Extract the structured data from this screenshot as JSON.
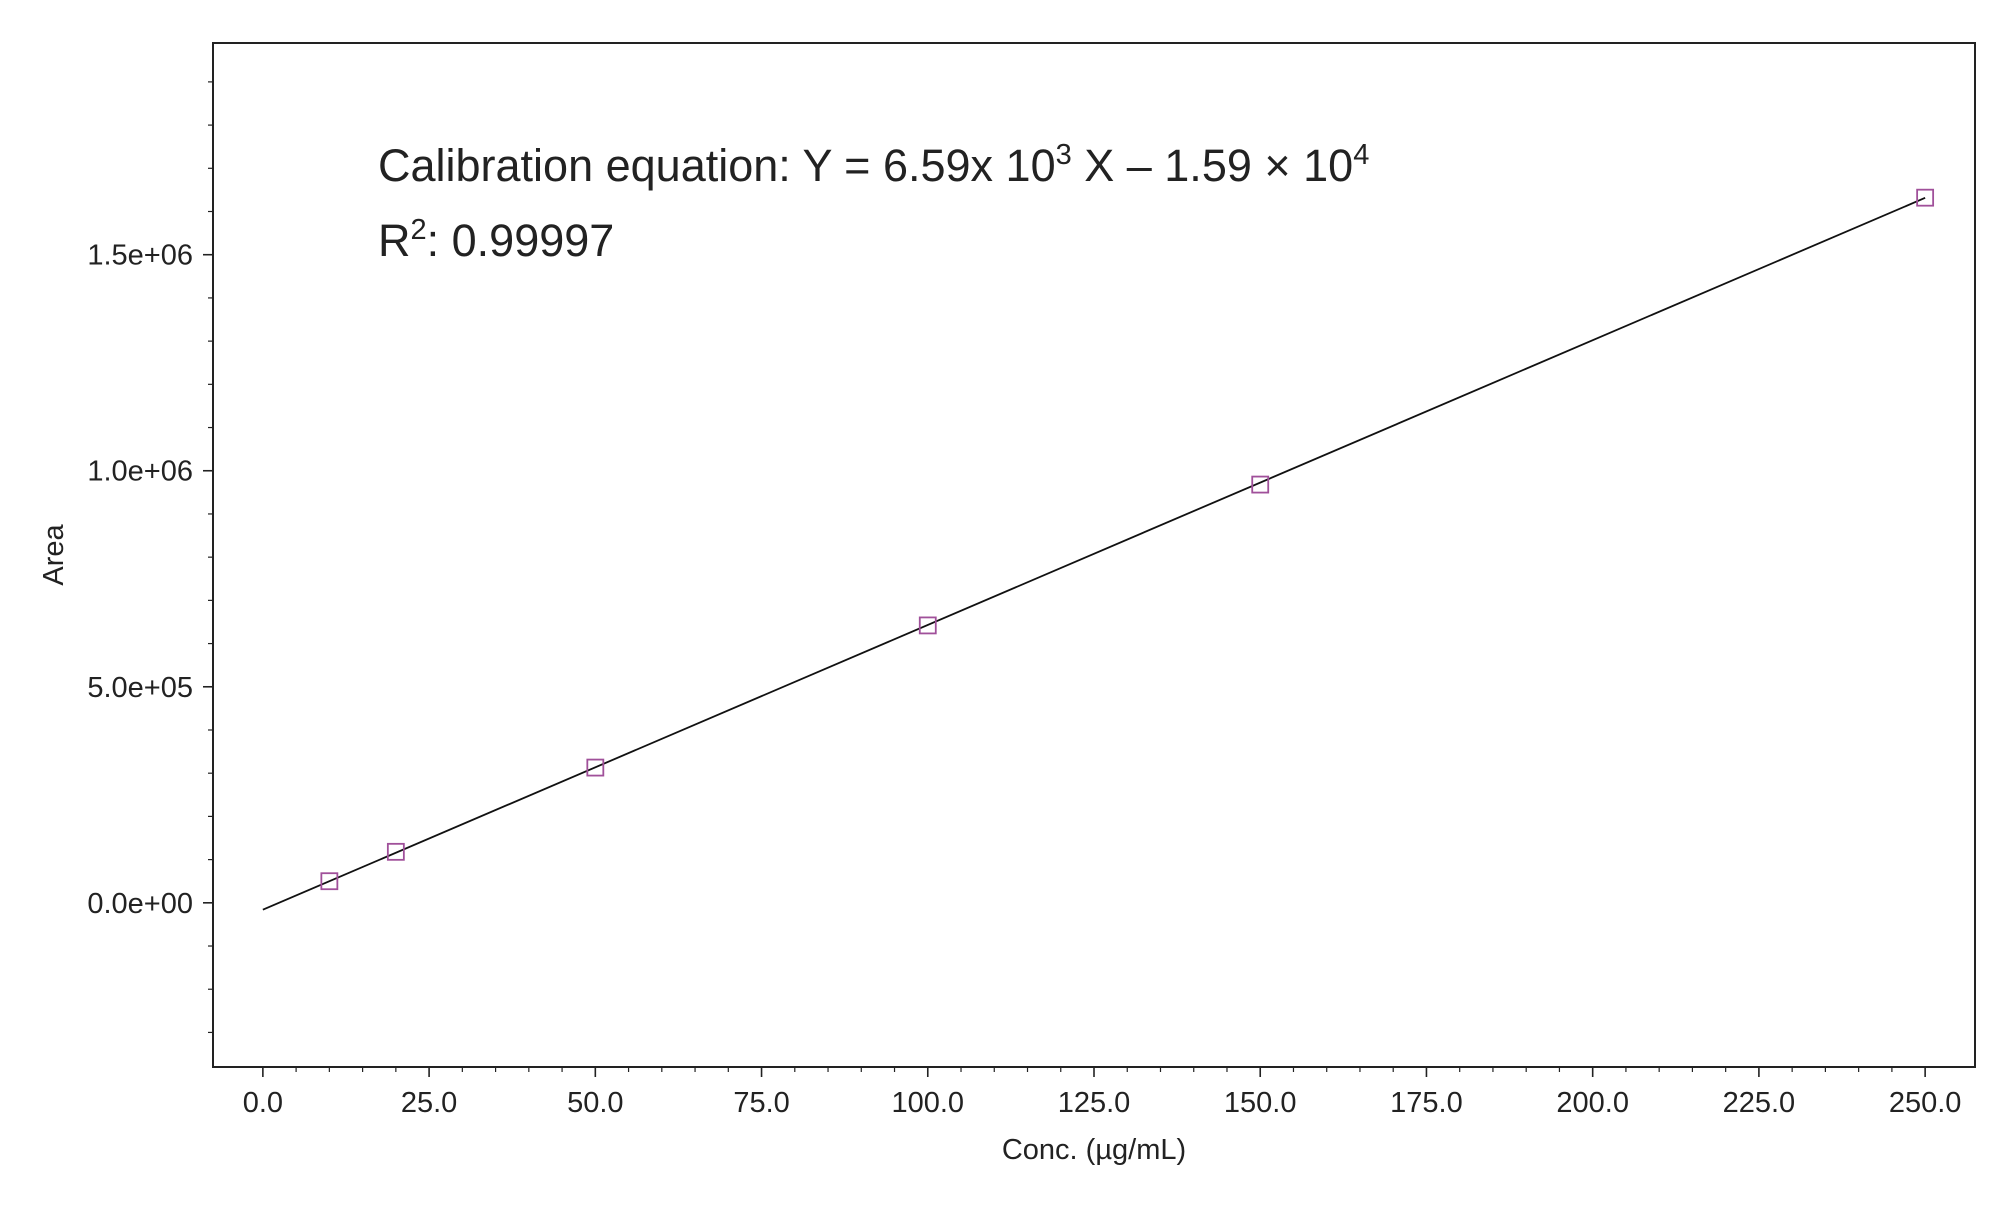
{
  "chart_data": {
    "type": "scatter",
    "title": "",
    "xlabel": "Conc. (µg/mL)",
    "ylabel": "Area",
    "xlim": [
      -7.5,
      257.5
    ],
    "ylim": [
      -380000,
      1990000
    ],
    "x_ticks": [
      0,
      25,
      50,
      75,
      100,
      125,
      150,
      175,
      200,
      225,
      250
    ],
    "x_tick_labels": [
      "0.0",
      "25.0",
      "50.0",
      "75.0",
      "100.0",
      "125.0",
      "150.0",
      "175.0",
      "200.0",
      "225.0",
      "250.0"
    ],
    "y_ticks": [
      0,
      500000,
      1000000,
      1500000
    ],
    "y_tick_labels": [
      "0.0e+00",
      "5.0e+05",
      "1.0e+06",
      "1.5e+06"
    ],
    "grid": false,
    "series": [
      {
        "marker": "open-square",
        "color": "#a0509a",
        "x": [
          10,
          20,
          50,
          100,
          150,
          250
        ],
        "y": [
          50000,
          118000,
          313000,
          642000,
          968000,
          1632000
        ]
      }
    ],
    "fit_line": {
      "color": "#111111",
      "slope": 6590,
      "intercept": -15900,
      "x_range": [
        0,
        250
      ]
    },
    "annotations": {
      "equation": {
        "prefix": "Calibration equation: Y = 6.59x 10",
        "exp1": "3",
        "middle": " X – 1.59 × 10",
        "exp2": "4"
      },
      "r_squared": {
        "base": "R",
        "exp": "2",
        "value": ": 0.99997"
      }
    }
  }
}
